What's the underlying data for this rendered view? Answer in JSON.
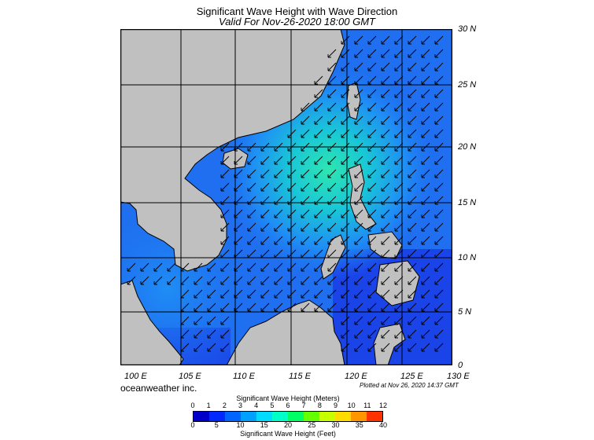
{
  "title": "Significant Wave Height with Wave Direction",
  "subtitle": "Valid For Nov-26-2020 18:00 GMT",
  "lat_labels": [
    "30 N",
    "25 N",
    "20 N",
    "15 N",
    "10 N",
    "5 N",
    "0"
  ],
  "lon_labels": [
    "100 E",
    "105 E",
    "110 E",
    "115 E",
    "120 E",
    "125 E",
    "130 E"
  ],
  "credit": "oceanweather inc.",
  "plotted": "Plotted at Nov 26, 2020 14:37 GMT",
  "colorbar": {
    "title_meters": "Significant Wave Height (Meters)",
    "title_feet": "Significant Wave Height (Feet)",
    "meters_ticks": [
      "0",
      "1",
      "2",
      "3",
      "4",
      "5",
      "6",
      "7",
      "8",
      "9",
      "10",
      "11",
      "12"
    ],
    "feet_ticks": [
      "0",
      "5",
      "10",
      "15",
      "20",
      "25",
      "30",
      "35",
      "40"
    ],
    "colors": [
      "#0000c8",
      "#0028ff",
      "#0064ff",
      "#00a0ff",
      "#00dcff",
      "#00ffc8",
      "#00ff64",
      "#64ff00",
      "#c8ff00",
      "#ffdc00",
      "#ff9600",
      "#ff3200"
    ]
  },
  "colors": {
    "land": "#c0c0c0",
    "sea_deep": "#1a3ce6",
    "sea_mid": "#1f6ff0",
    "sea_peak": "#2ee6b0"
  }
}
